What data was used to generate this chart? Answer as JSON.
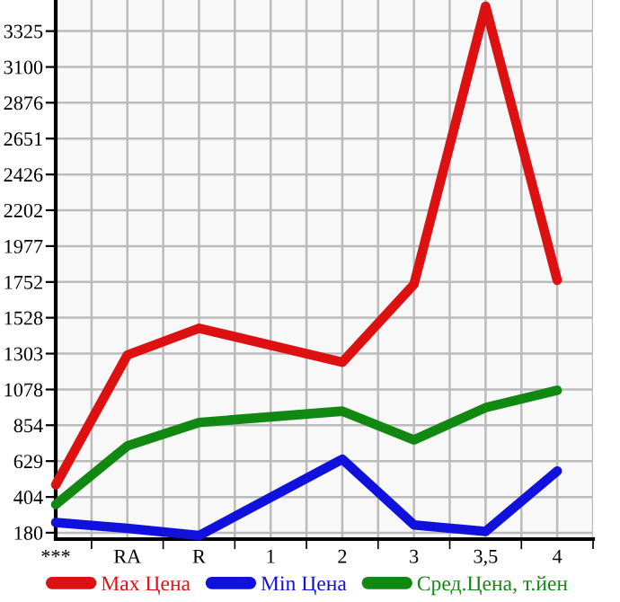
{
  "chart_data": {
    "type": "line",
    "categories": [
      "***",
      "RA",
      "R",
      "1",
      "2",
      "3",
      "3,5",
      "4"
    ],
    "series": [
      {
        "name": "Max Цена",
        "color": "#dd1111",
        "values": [
          480,
          1294,
          1462,
          null,
          1249,
          1737,
          3481,
          1763
        ]
      },
      {
        "name": "Min Цена",
        "color": "#1111dd",
        "values": [
          244,
          207,
          162,
          null,
          641,
          229,
          188,
          567
        ]
      },
      {
        "name": "Сред.Цена, т.йен",
        "color": "#118811",
        "values": [
          357,
          724,
          871,
          null,
          942,
          762,
          964,
          1073
        ]
      }
    ],
    "ylim": [
      140,
      3520
    ],
    "yticks": [
      180,
      404,
      629,
      854,
      1078,
      1303,
      1528,
      1752,
      1977,
      2202,
      2426,
      2651,
      2876,
      3100,
      3325
    ],
    "grid": true,
    "legend": "bottom",
    "marker": "none",
    "line_style": "solid"
  }
}
